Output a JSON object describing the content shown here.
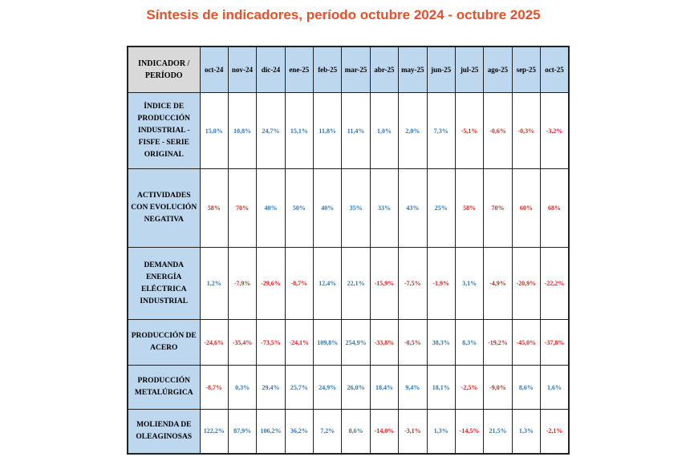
{
  "title": "Síntesis de indicadores, período octubre 2024 - octubre 2025",
  "colors": {
    "title": "#e8502a",
    "header_bg": "#bdd7ee",
    "corner_bg": "#d9d9d9",
    "positive": "#2e75b6",
    "negative": "#e02020"
  },
  "table": {
    "corner": "INDICADOR / PERÍODO",
    "periods": [
      "oct-24",
      "nov-24",
      "dic-24",
      "ene-25",
      "feb-25",
      "mar-25",
      "abr-25",
      "may-25",
      "jun-25",
      "jul-25",
      "ago-25",
      "sep-25",
      "oct-25"
    ],
    "rows": [
      {
        "label": "ÍNDICE DE PRODUCCIÓN INDUSTRIAL - FISFE - SERIE ORIGINAL",
        "values": [
          "15,0%",
          "10,8%",
          "24,7%",
          "15,1%",
          "11,8%",
          "11,4%",
          "1,0%",
          "2,0%",
          "7,3%",
          "-5,1%",
          "-0,6%",
          "-0,3%",
          "-3,2%"
        ],
        "tones": [
          "blue",
          "blue",
          "blue",
          "blue",
          "blue",
          "blue",
          "blue",
          "blue",
          "blue",
          "red",
          "red",
          "red",
          "red"
        ]
      },
      {
        "label": "ACTIVIDADES CON EVOLUCIÓN NEGATIVA",
        "values": [
          "58%",
          "70%",
          "40%",
          "50%",
          "40%",
          "35%",
          "33%",
          "43%",
          "25%",
          "58%",
          "70%",
          "60%",
          "68%"
        ],
        "tones": [
          "red",
          "red",
          "blue",
          "blue",
          "blue",
          "blue",
          "blue",
          "blue",
          "blue",
          "red",
          "red",
          "red",
          "red"
        ]
      },
      {
        "label": "DEMANDA ENERGÍA ELÉCTRICA INDUSTRIAL",
        "values": [
          "1,2%",
          "-7,9%",
          "-29,6%",
          "-8,7%",
          "12,4%",
          "22,1%",
          "-15,9%",
          "-7,5%",
          "-1,9%",
          "3,1%",
          "-4,9%",
          "-20,9%",
          "-22,2%"
        ],
        "tones": [
          "blue",
          "red",
          "red",
          "red",
          "blue",
          "blue",
          "red",
          "red",
          "red",
          "blue",
          "red",
          "red",
          "red"
        ]
      },
      {
        "label": "PRODUCCIÓN DE ACERO",
        "values": [
          "-24,6%",
          "-35,4%",
          "-73,5%",
          "-24,1%",
          "109,8%",
          "254,9%",
          "-33,8%",
          "-0,5%",
          "38,3%",
          "8,3%",
          "-19,2%",
          "-45,0%",
          "-37,8%"
        ],
        "tones": [
          "red",
          "red",
          "red",
          "red",
          "blue",
          "blue",
          "red",
          "red",
          "blue",
          "blue",
          "red",
          "red",
          "red"
        ]
      },
      {
        "label": "PRODUCCIÓN METALÚRGICA",
        "values": [
          "-8,7%",
          "0,3%",
          "29,4%",
          "25,7%",
          "24,9%",
          "26,0%",
          "18,4%",
          "9,4%",
          "18,1%",
          "-2,5%",
          "-9,0%",
          "8,6%",
          "1,6%"
        ],
        "tones": [
          "red",
          "blue",
          "blue",
          "blue",
          "blue",
          "blue",
          "blue",
          "blue",
          "blue",
          "red",
          "red",
          "blue",
          "blue"
        ]
      },
      {
        "label": "MOLIENDA DE OLEAGINOSAS",
        "values": [
          "122,2%",
          "87,9%",
          "106,2%",
          "36,2%",
          "7,2%",
          "8,6%",
          "-14,0%",
          "-3,1%",
          "1,3%",
          "-14,5%",
          "21,5%",
          "1,3%",
          "-2,1%"
        ],
        "tones": [
          "blue",
          "blue",
          "blue",
          "blue",
          "blue",
          "blue",
          "red",
          "red",
          "blue",
          "red",
          "blue",
          "blue",
          "red"
        ]
      }
    ]
  }
}
